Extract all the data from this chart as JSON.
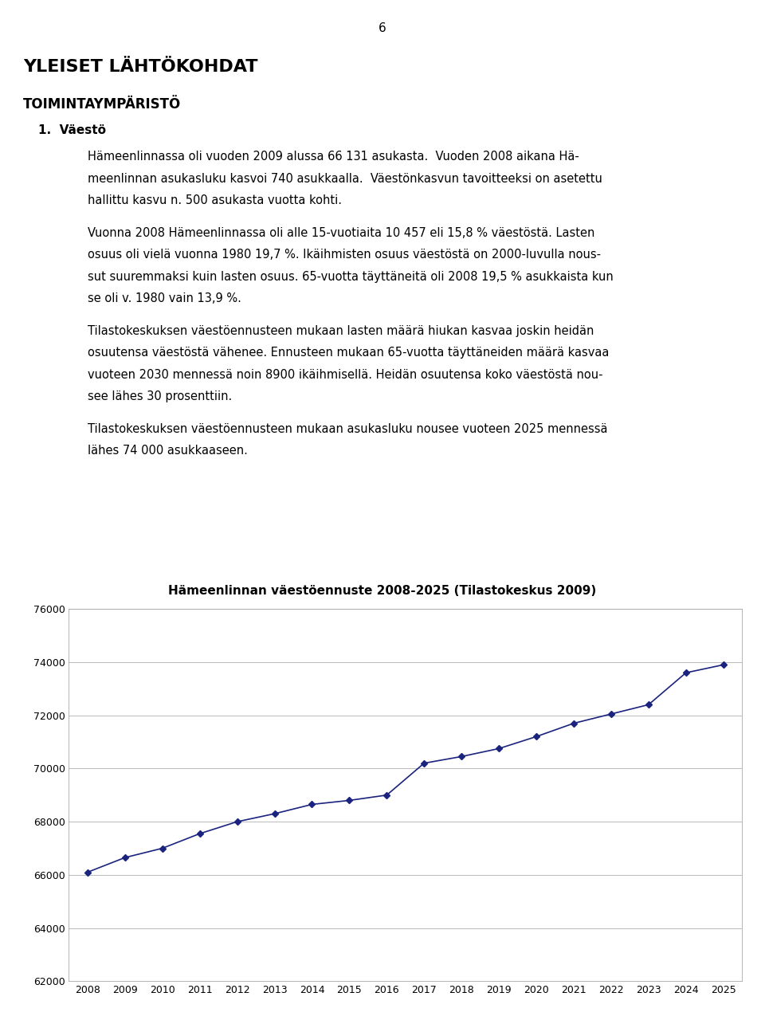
{
  "page_number": "6",
  "title_main": "YLEISET LÄHTÖKOHDAT",
  "subtitle_main": "TOIMINTAYMPÄRISTÖ",
  "section": "1.  Väestö",
  "chart_title": "Hämeenlinnan väestöennuste 2008-2025 (Tilastokeskus 2009)",
  "years": [
    2008,
    2009,
    2010,
    2011,
    2012,
    2013,
    2014,
    2015,
    2016,
    2017,
    2018,
    2019,
    2020,
    2021,
    2022,
    2023,
    2024,
    2025
  ],
  "values": [
    66100,
    66650,
    67000,
    67550,
    68000,
    68300,
    68650,
    68800,
    69000,
    70200,
    70450,
    70750,
    71200,
    71700,
    72050,
    72400,
    73600,
    73900
  ],
  "ylim": [
    62000,
    76000
  ],
  "yticks": [
    62000,
    64000,
    66000,
    68000,
    70000,
    72000,
    74000,
    76000
  ],
  "line_color": "#1a237e",
  "marker": "D",
  "marker_size": 4,
  "bg_color": "#ffffff",
  "grid_color": "#b0b0b0",
  "tick_fontsize": 9,
  "chart_title_fontsize": 11,
  "para1_lines": [
    "Hämeenlinnassa oli vuoden 2009 alussa 66 131 asukasta.  Vuoden 2008 aikana Hä-",
    "meenlinnan asukasluku kasvoi 740 asukkaalla.  Väestönkasvun tavoitteeksi on asetettu",
    "hallittu kasvu n. 500 asukasta vuotta kohti."
  ],
  "para2_lines": [
    "Vuonna 2008 Hämeenlinnassa oli alle 15-vuotiaita 10 457 eli 15,8 % väestöstä. Lasten",
    "osuus oli vielä vuonna 1980 19,7 %. Ikäihmisten osuus väestöstä on 2000-luvulla nous-",
    "sut suuremmaksi kuin lasten osuus. 65-vuotta täyttäneitä oli 2008 19,5 % asukkaista kun",
    "se oli v. 1980 vain 13,9 %."
  ],
  "para3_lines": [
    "Tilastokeskuksen väestöennusteen mukaan lasten määrä hiukan kasvaa joskin heidän",
    "osuutensa väestöstä vähenee. Ennusteen mukaan 65-vuotta täyttäneiden määrä kasvaa",
    "vuoteen 2030 mennessä noin 8900 ikäihmisellä. Heidän osuutensa koko väestöstä nou-",
    "see lähes 30 prosenttiin."
  ],
  "para4_lines": [
    "Tilastokeskuksen väestöennusteen mukaan asukasluku nousee vuoteen 2025 mennessä",
    "lähes 74 000 asukkaaseen."
  ]
}
